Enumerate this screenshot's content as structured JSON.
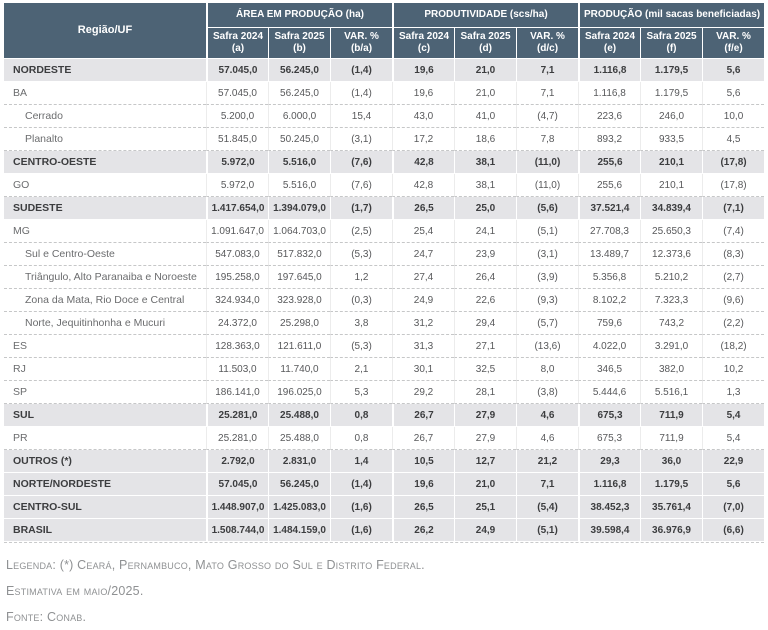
{
  "colors": {
    "header_bg": "#4d6375",
    "header_text": "#ffffff",
    "group_row_bg": "#e4e4e7",
    "row_divider_dashed": "#c6c7c8",
    "cell_divider": "#ececec",
    "body_text": "#58595b",
    "group_text": "#3c3d3f",
    "footer_text": "#8f9193"
  },
  "table": {
    "region_header": "Região/UF",
    "groups": [
      {
        "label": "ÁREA EM PRODUÇÃO (ha)",
        "columns": [
          "Safra 2024\n(a)",
          "Safra 2025 (b)",
          "VAR. %\n(b/a)"
        ]
      },
      {
        "label": "PRODUTIVIDADE (scs/ha)",
        "columns": [
          "Safra 2024 (c)",
          "Safra 2025 (d)",
          "VAR. %\n(d/c)"
        ]
      },
      {
        "label": "PRODUÇÃO (mil sacas beneficiadas)",
        "columns": [
          "Safra 2024\n(e)",
          "Safra 2025 (f)",
          "VAR. %\n(f/e)"
        ]
      }
    ],
    "rows": [
      {
        "label": "NORDESTE",
        "type": "group",
        "values": [
          "57.045,0",
          "56.245,0",
          "(1,4)",
          "19,6",
          "21,0",
          "7,1",
          "1.116,8",
          "1.179,5",
          "5,6"
        ]
      },
      {
        "label": "BA",
        "type": "state",
        "values": [
          "57.045,0",
          "56.245,0",
          "(1,4)",
          "19,6",
          "21,0",
          "7,1",
          "1.116,8",
          "1.179,5",
          "5,6"
        ]
      },
      {
        "label": "Cerrado",
        "type": "sub",
        "values": [
          "5.200,0",
          "6.000,0",
          "15,4",
          "43,0",
          "41,0",
          "(4,7)",
          "223,6",
          "246,0",
          "10,0"
        ]
      },
      {
        "label": "Planalto",
        "type": "sub",
        "values": [
          "51.845,0",
          "50.245,0",
          "(3,1)",
          "17,2",
          "18,6",
          "7,8",
          "893,2",
          "933,5",
          "4,5"
        ]
      },
      {
        "label": "CENTRO-OESTE",
        "type": "group",
        "values": [
          "5.972,0",
          "5.516,0",
          "(7,6)",
          "42,8",
          "38,1",
          "(11,0)",
          "255,6",
          "210,1",
          "(17,8)"
        ]
      },
      {
        "label": "GO",
        "type": "state",
        "values": [
          "5.972,0",
          "5.516,0",
          "(7,6)",
          "42,8",
          "38,1",
          "(11,0)",
          "255,6",
          "210,1",
          "(17,8)"
        ]
      },
      {
        "label": "SUDESTE",
        "type": "group",
        "values": [
          "1.417.654,0",
          "1.394.079,0",
          "(1,7)",
          "26,5",
          "25,0",
          "(5,6)",
          "37.521,4",
          "34.839,4",
          "(7,1)"
        ]
      },
      {
        "label": "MG",
        "type": "state",
        "values": [
          "1.091.647,0",
          "1.064.703,0",
          "(2,5)",
          "25,4",
          "24,1",
          "(5,1)",
          "27.708,3",
          "25.650,3",
          "(7,4)"
        ]
      },
      {
        "label": "Sul e Centro-Oeste",
        "type": "sub",
        "values": [
          "547.083,0",
          "517.832,0",
          "(5,3)",
          "24,7",
          "23,9",
          "(3,1)",
          "13.489,7",
          "12.373,6",
          "(8,3)"
        ]
      },
      {
        "label": "Triângulo, Alto Paranaiba e Noroeste",
        "type": "sub",
        "values": [
          "195.258,0",
          "197.645,0",
          "1,2",
          "27,4",
          "26,4",
          "(3,9)",
          "5.356,8",
          "5.210,2",
          "(2,7)"
        ]
      },
      {
        "label": "Zona da Mata, Rio Doce e Central",
        "type": "sub",
        "values": [
          "324.934,0",
          "323.928,0",
          "(0,3)",
          "24,9",
          "22,6",
          "(9,3)",
          "8.102,2",
          "7.323,3",
          "(9,6)"
        ]
      },
      {
        "label": "Norte, Jequitinhonha e Mucuri",
        "type": "sub",
        "values": [
          "24.372,0",
          "25.298,0",
          "3,8",
          "31,2",
          "29,4",
          "(5,7)",
          "759,6",
          "743,2",
          "(2,2)"
        ]
      },
      {
        "label": "ES",
        "type": "state",
        "values": [
          "128.363,0",
          "121.611,0",
          "(5,3)",
          "31,3",
          "27,1",
          "(13,6)",
          "4.022,0",
          "3.291,0",
          "(18,2)"
        ]
      },
      {
        "label": "RJ",
        "type": "state",
        "values": [
          "11.503,0",
          "11.740,0",
          "2,1",
          "30,1",
          "32,5",
          "8,0",
          "346,5",
          "382,0",
          "10,2"
        ]
      },
      {
        "label": "SP",
        "type": "state",
        "values": [
          "186.141,0",
          "196.025,0",
          "5,3",
          "29,2",
          "28,1",
          "(3,8)",
          "5.444,6",
          "5.516,1",
          "1,3"
        ]
      },
      {
        "label": "SUL",
        "type": "group",
        "values": [
          "25.281,0",
          "25.488,0",
          "0,8",
          "26,7",
          "27,9",
          "4,6",
          "675,3",
          "711,9",
          "5,4"
        ]
      },
      {
        "label": "PR",
        "type": "state",
        "values": [
          "25.281,0",
          "25.488,0",
          "0,8",
          "26,7",
          "27,9",
          "4,6",
          "675,3",
          "711,9",
          "5,4"
        ]
      },
      {
        "label": "OUTROS (*)",
        "type": "group",
        "values": [
          "2.792,0",
          "2.831,0",
          "1,4",
          "10,5",
          "12,7",
          "21,2",
          "29,3",
          "36,0",
          "22,9"
        ]
      },
      {
        "label": "NORTE/NORDESTE",
        "type": "group",
        "values": [
          "57.045,0",
          "56.245,0",
          "(1,4)",
          "19,6",
          "21,0",
          "7,1",
          "1.116,8",
          "1.179,5",
          "5,6"
        ]
      },
      {
        "label": "CENTRO-SUL",
        "type": "group",
        "values": [
          "1.448.907,0",
          "1.425.083,0",
          "(1,6)",
          "26,5",
          "25,1",
          "(5,4)",
          "38.452,3",
          "35.761,4",
          "(7,0)"
        ]
      },
      {
        "label": "BRASIL",
        "type": "group",
        "values": [
          "1.508.744,0",
          "1.484.159,0",
          "(1,6)",
          "26,2",
          "24,9",
          "(5,1)",
          "39.598,4",
          "36.976,9",
          "(6,6)"
        ]
      }
    ]
  },
  "footer": {
    "legend": "Legenda: (*) Ceará, Pernambuco, Mato Grosso do Sul e Distrito Federal.",
    "estimate": "Estimativa em maio/2025.",
    "source": "Fonte: Conab."
  }
}
